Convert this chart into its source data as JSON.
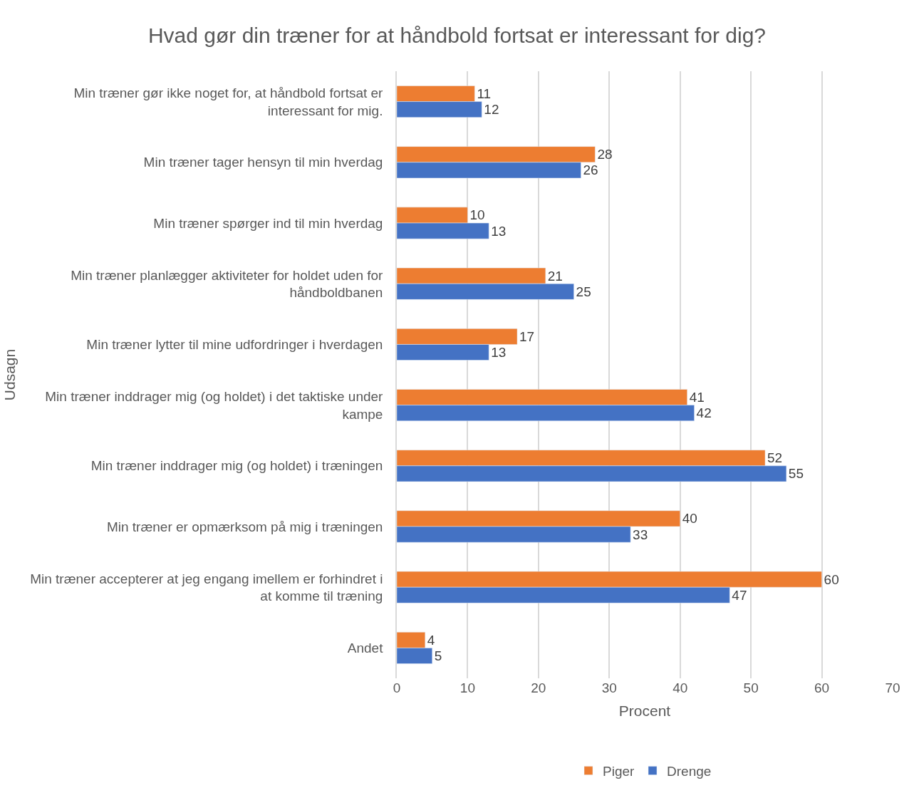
{
  "chart_data": {
    "type": "bar",
    "orientation": "horizontal",
    "title": "Hvad gør din træner for at håndbold fortsat er interessant for dig?",
    "xlabel": "Procent",
    "ylabel": "Udsagn",
    "categories": [
      "Min træner gør ikke noget for, at håndbold fortsat er interessant for mig.",
      "Min træner tager hensyn til min hverdag",
      "Min træner spørger ind til min hverdag",
      "Min træner planlægger aktiviteter for holdet uden for håndboldbanen",
      "Min træner lytter til mine udfordringer i hverdagen",
      "Min træner inddrager mig (og holdet) i det taktiske under kampe",
      "Min træner inddrager mig (og holdet) i træningen",
      "Min træner er opmærksom på mig i træningen",
      "Min træner accepterer at jeg engang imellem er forhindret i at komme til træning",
      "Andet"
    ],
    "series": [
      {
        "name": "Piger",
        "color": "#ed7d31",
        "values": [
          11,
          28,
          10,
          21,
          17,
          41,
          52,
          40,
          60,
          4
        ]
      },
      {
        "name": "Drenge",
        "color": "#4472c4",
        "values": [
          12,
          26,
          13,
          25,
          13,
          42,
          55,
          33,
          47,
          5
        ]
      }
    ],
    "xlim": [
      0,
      70
    ],
    "xticks": [
      0,
      10,
      20,
      30,
      40,
      50,
      60,
      70
    ],
    "grid": "x",
    "legend": "bottom",
    "data_labels": true
  }
}
